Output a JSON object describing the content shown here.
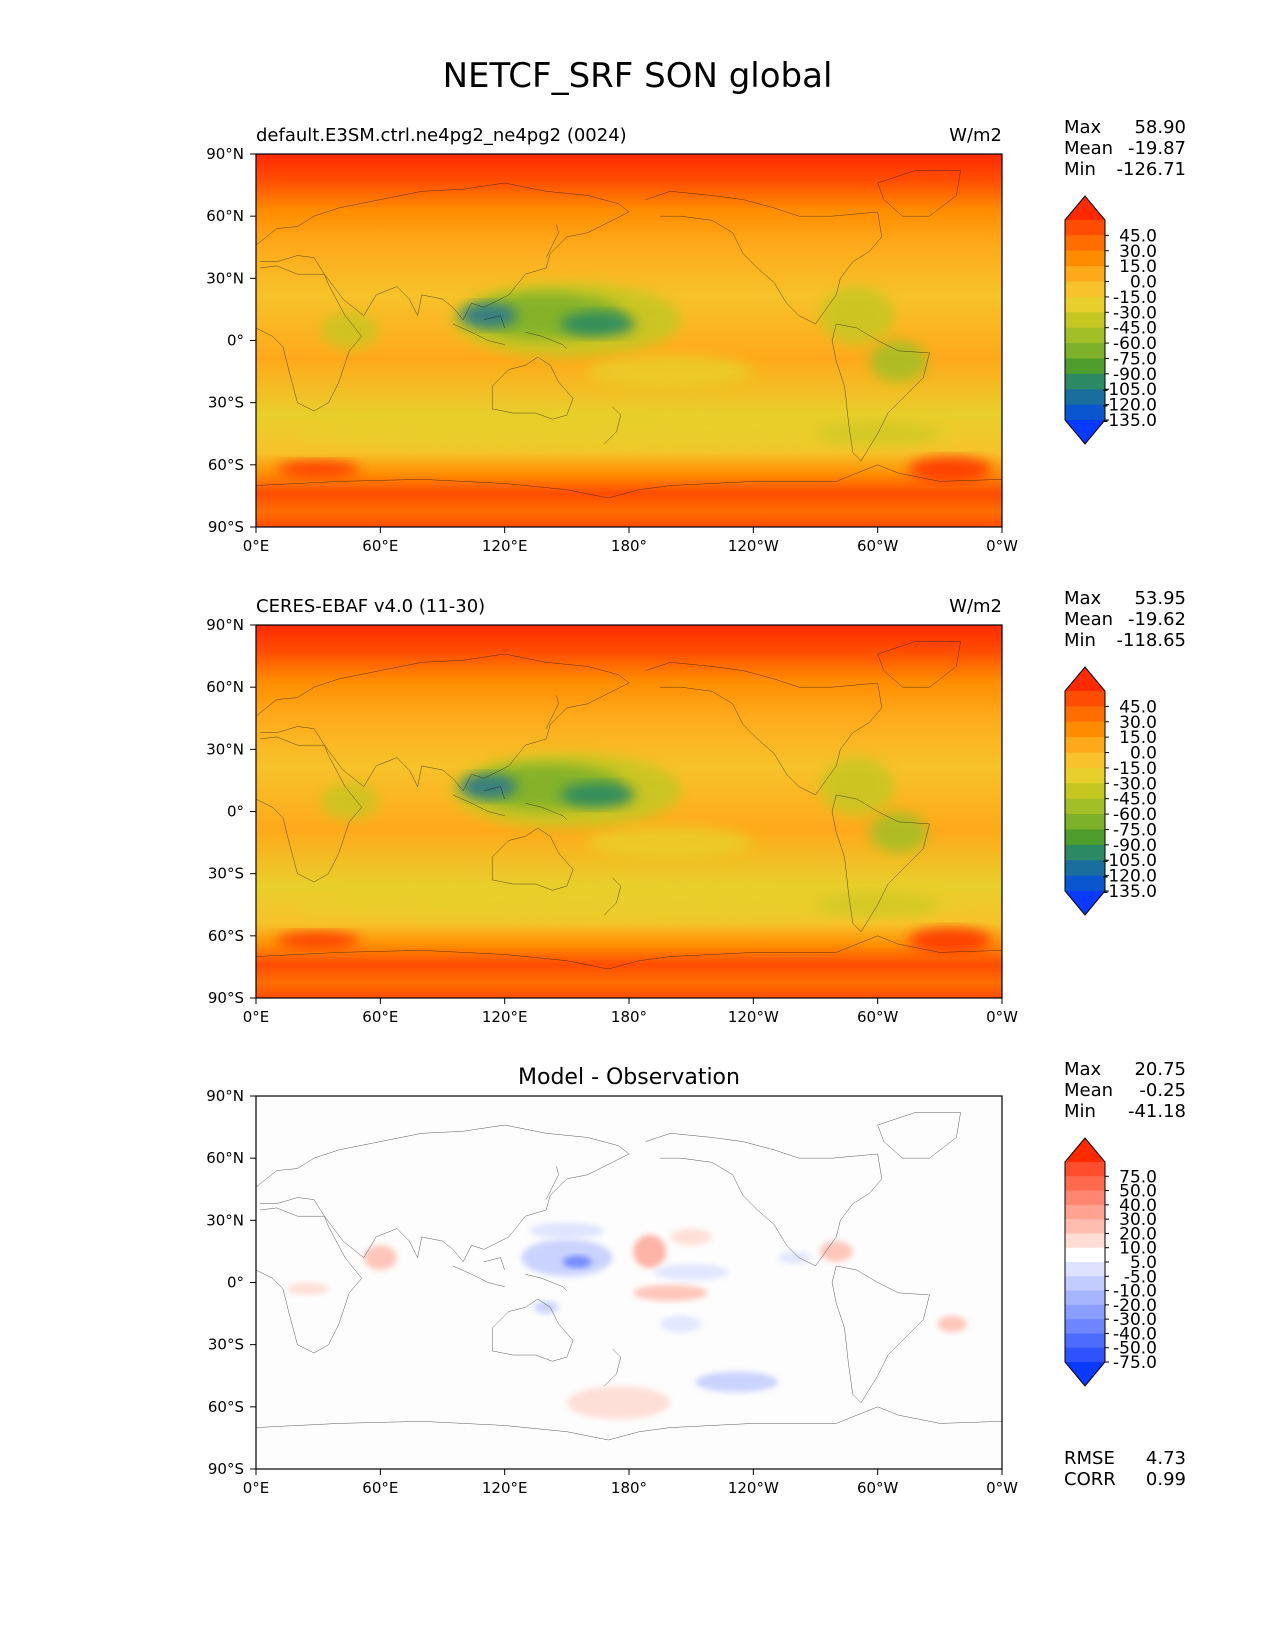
{
  "title": "NETCF_SRF SON global",
  "panels": [
    {
      "id": "test",
      "left_title": "default.E3SM.ctrl.ne4pg2_ne4pg2 (0024)",
      "center_title": "",
      "units": "W/m2",
      "stats": [
        {
          "label": "Max",
          "value": "58.90"
        },
        {
          "label": "Mean",
          "value": "-19.87"
        },
        {
          "label": "Min",
          "value": "-126.71"
        }
      ],
      "colorbar": {
        "labels": [
          "45.0",
          "30.0",
          "15.0",
          "0.0",
          "-15.0",
          "-30.0",
          "-45.0",
          "-60.0",
          "-75.0",
          "-90.0",
          "-105.0",
          "-120.0",
          "-135.0"
        ],
        "colors": [
          "#ff2a00",
          "#ff4d00",
          "#ff6d00",
          "#ff8c00",
          "#ffa91a",
          "#f7c22a",
          "#e8cf2b",
          "#c6c620",
          "#a3bf27",
          "#7eb12a",
          "#4f9d2d",
          "#2b8a64",
          "#1a6e9e",
          "#0a55d0",
          "#0a39ff"
        ]
      }
    },
    {
      "id": "ref",
      "left_title": "CERES-EBAF v4.0 (11-30)",
      "center_title": "",
      "units": "W/m2",
      "stats": [
        {
          "label": "Max",
          "value": "53.95"
        },
        {
          "label": "Mean",
          "value": "-19.62"
        },
        {
          "label": "Min",
          "value": "-118.65"
        }
      ],
      "colorbar": {
        "labels": [
          "45.0",
          "30.0",
          "15.0",
          "0.0",
          "-15.0",
          "-30.0",
          "-45.0",
          "-60.0",
          "-75.0",
          "-90.0",
          "-105.0",
          "-120.0",
          "-135.0"
        ],
        "colors": [
          "#ff2a00",
          "#ff4d00",
          "#ff6d00",
          "#ff8c00",
          "#ffa91a",
          "#f7c22a",
          "#e8cf2b",
          "#c6c620",
          "#a3bf27",
          "#7eb12a",
          "#4f9d2d",
          "#2b8a64",
          "#1a6e9e",
          "#0a55d0",
          "#0a39ff"
        ]
      }
    },
    {
      "id": "diff",
      "left_title": "",
      "center_title": "Model - Observation",
      "units": "",
      "stats": [
        {
          "label": "Max",
          "value": "20.75"
        },
        {
          "label": "Mean",
          "value": "-0.25"
        },
        {
          "label": "Min",
          "value": "-41.18"
        }
      ],
      "extra_stats": [
        {
          "label": "RMSE",
          "value": "4.73"
        },
        {
          "label": "CORR",
          "value": "0.99"
        }
      ],
      "colorbar": {
        "labels": [
          "75.0",
          "50.0",
          "40.0",
          "30.0",
          "20.0",
          "10.0",
          "5.0",
          "-5.0",
          "-10.0",
          "-20.0",
          "-30.0",
          "-40.0",
          "-50.0",
          "-75.0"
        ],
        "colors": [
          "#ff2a00",
          "#ff4d2e",
          "#ff6a4f",
          "#ff8670",
          "#ffa291",
          "#ffbdb0",
          "#ffdcd4",
          "#ffffff",
          "#dde3ff",
          "#c2ccff",
          "#a6b5ff",
          "#8a9eff",
          "#6d86ff",
          "#4d6cff",
          "#2f52ff",
          "#0a39ff"
        ]
      }
    }
  ],
  "axes": {
    "lat_ticks": [
      "90°N",
      "60°N",
      "30°N",
      "0°",
      "30°S",
      "60°S",
      "90°S"
    ],
    "lon_ticks": [
      "0°E",
      "60°E",
      "120°E",
      "180°",
      "120°W",
      "60°W",
      "0°W"
    ]
  }
}
